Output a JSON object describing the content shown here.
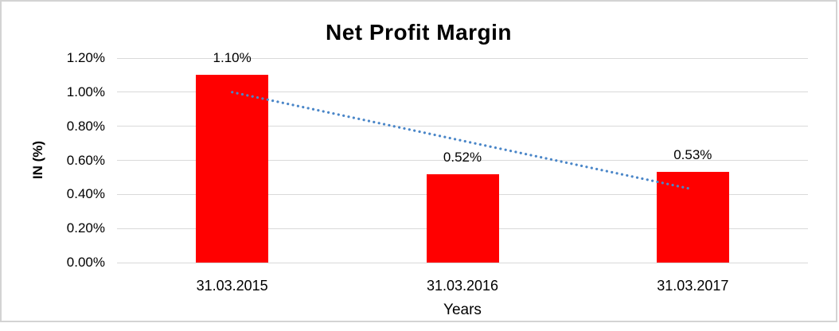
{
  "window": {
    "background": "#ffffff",
    "frame_border_color": "#d3d3d3"
  },
  "chart_data": {
    "type": "bar",
    "title": "Net Profit Margin",
    "xlabel": "Years",
    "ylabel": "IN (%)",
    "categories": [
      "31.03.2015",
      "31.03.2016",
      "31.03.2017"
    ],
    "series": [
      {
        "name": "Net Profit Margin",
        "values": [
          1.1,
          0.52,
          0.53
        ]
      }
    ],
    "data_labels": [
      "1.10%",
      "0.52%",
      "0.53%"
    ],
    "y_ticks": [
      {
        "value": 1.2,
        "label": "1.20%"
      },
      {
        "value": 1.0,
        "label": "1.00%"
      },
      {
        "value": 0.8,
        "label": "0.80%"
      },
      {
        "value": 0.6,
        "label": "0.60%"
      },
      {
        "value": 0.4,
        "label": "0.40%"
      },
      {
        "value": 0.2,
        "label": "0.20%"
      },
      {
        "value": 0.0,
        "label": "0.00%"
      }
    ],
    "ylim": [
      0,
      1.2
    ],
    "grid": true,
    "legend": "none",
    "bar_color": "#ff0000",
    "gridline_color": "#d9d9d9",
    "trendline": {
      "type": "linear",
      "style": "dotted",
      "color": "#4a86c8",
      "start_value": 1.0,
      "end_value": 0.43
    }
  }
}
